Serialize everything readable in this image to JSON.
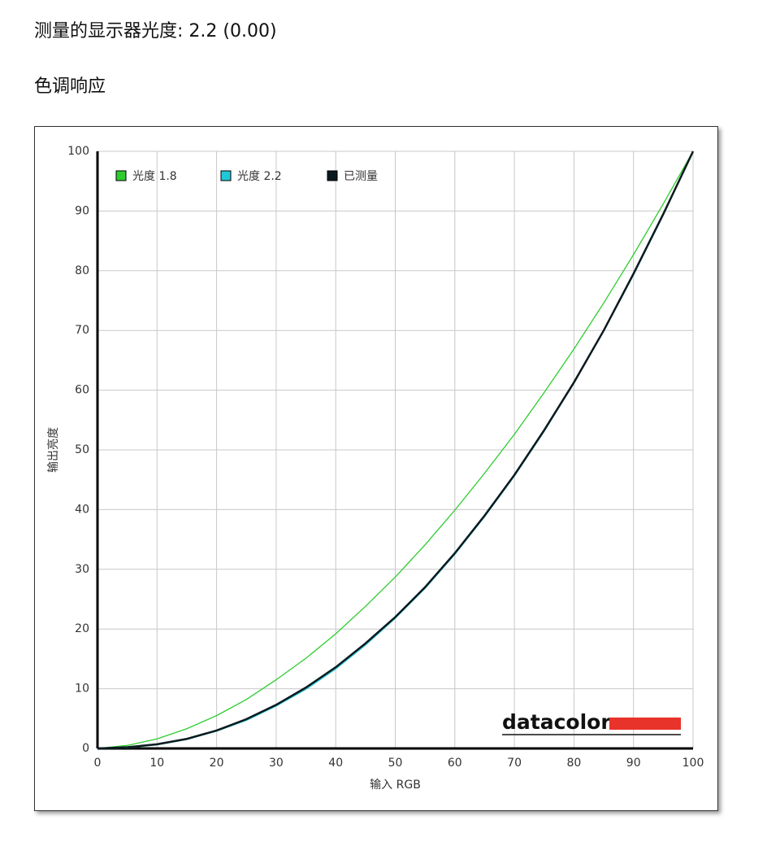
{
  "page": {
    "heading": "测量的显示器光度: 2.2 (0.00)",
    "section": "色调响应"
  },
  "chart_data": {
    "type": "line",
    "x_label": "输入 RGB",
    "y_label": "输出亮度",
    "watermark": "datacolor",
    "x": [
      0,
      5,
      10,
      15,
      20,
      25,
      30,
      35,
      40,
      45,
      50,
      55,
      60,
      65,
      70,
      75,
      80,
      85,
      90,
      95,
      100
    ],
    "series": [
      {
        "name": "光度 1.8",
        "color": "#2ecc2e",
        "values": [
          0,
          0.5,
          1.6,
          3.3,
          5.5,
          8.2,
          11.5,
          15.1,
          19.2,
          23.8,
          28.7,
          34.1,
          39.9,
          46.1,
          52.6,
          59.6,
          66.9,
          74.6,
          82.7,
          91.2,
          100
        ]
      },
      {
        "name": "光度 2.2",
        "color": "#22c8d8",
        "values": [
          0,
          0.1,
          0.6,
          1.5,
          2.9,
          4.7,
          7.1,
          9.9,
          13.3,
          17.3,
          21.8,
          26.8,
          32.5,
          38.8,
          45.6,
          53.1,
          61.2,
          69.9,
          79.3,
          89.3,
          100
        ]
      },
      {
        "name": "已测量",
        "color": "#0b1a1f",
        "values": [
          0,
          0.2,
          0.7,
          1.6,
          3.0,
          4.9,
          7.3,
          10.2,
          13.6,
          17.6,
          22.0,
          27.0,
          32.7,
          39.0,
          45.8,
          53.3,
          61.3,
          70.0,
          79.5,
          89.5,
          100
        ]
      }
    ],
    "xlim": [
      0,
      100
    ],
    "ylim": [
      0,
      100
    ],
    "xticks": [
      0,
      10,
      20,
      30,
      40,
      50,
      60,
      70,
      80,
      90,
      100
    ],
    "yticks": [
      0,
      10,
      20,
      30,
      40,
      50,
      60,
      70,
      80,
      90,
      100
    ],
    "grid": true,
    "legend": "top-left"
  }
}
